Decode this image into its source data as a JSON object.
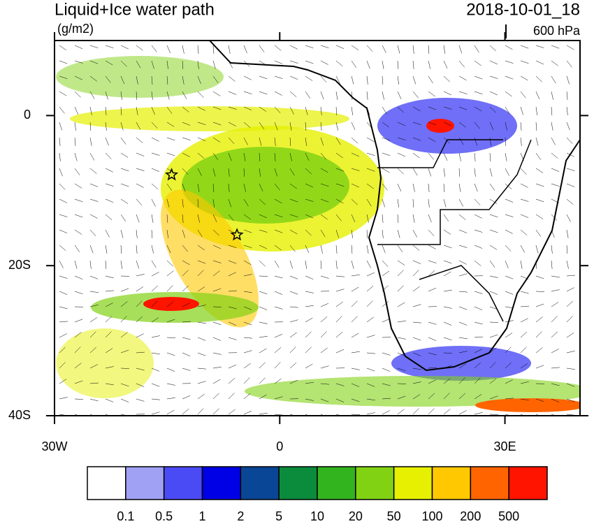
{
  "title": "Liquid+Ice water path",
  "units": "(g/m2)",
  "date": "2018-10-01_18",
  "level": "600 hPa",
  "map": {
    "xlim": [
      -30,
      40
    ],
    "ylim": [
      -40,
      10
    ],
    "xticks": [
      {
        "value": -30,
        "label": "30W"
      },
      0,
      {
        "value": 30,
        "label": "30E"
      }
    ],
    "yticks": [
      0,
      {
        "value": -20,
        "label": "20S"
      },
      {
        "value": -40,
        "label": "40S"
      }
    ],
    "markers": [
      {
        "lon": -14.4,
        "lat": -7.9
      },
      {
        "lon": -5.7,
        "lat": -15.9
      }
    ]
  },
  "colorbar": {
    "colors": [
      "#ffffff",
      "#a0a0f5",
      "#4b4bf5",
      "#0000e6",
      "#0a4696",
      "#0a8c3c",
      "#32b41e",
      "#82d214",
      "#e6f000",
      "#ffc800",
      "#ff6400",
      "#ff1400"
    ],
    "levels": [
      0.1,
      0.5,
      1,
      2,
      5,
      10,
      20,
      50,
      100,
      200,
      500
    ]
  }
}
